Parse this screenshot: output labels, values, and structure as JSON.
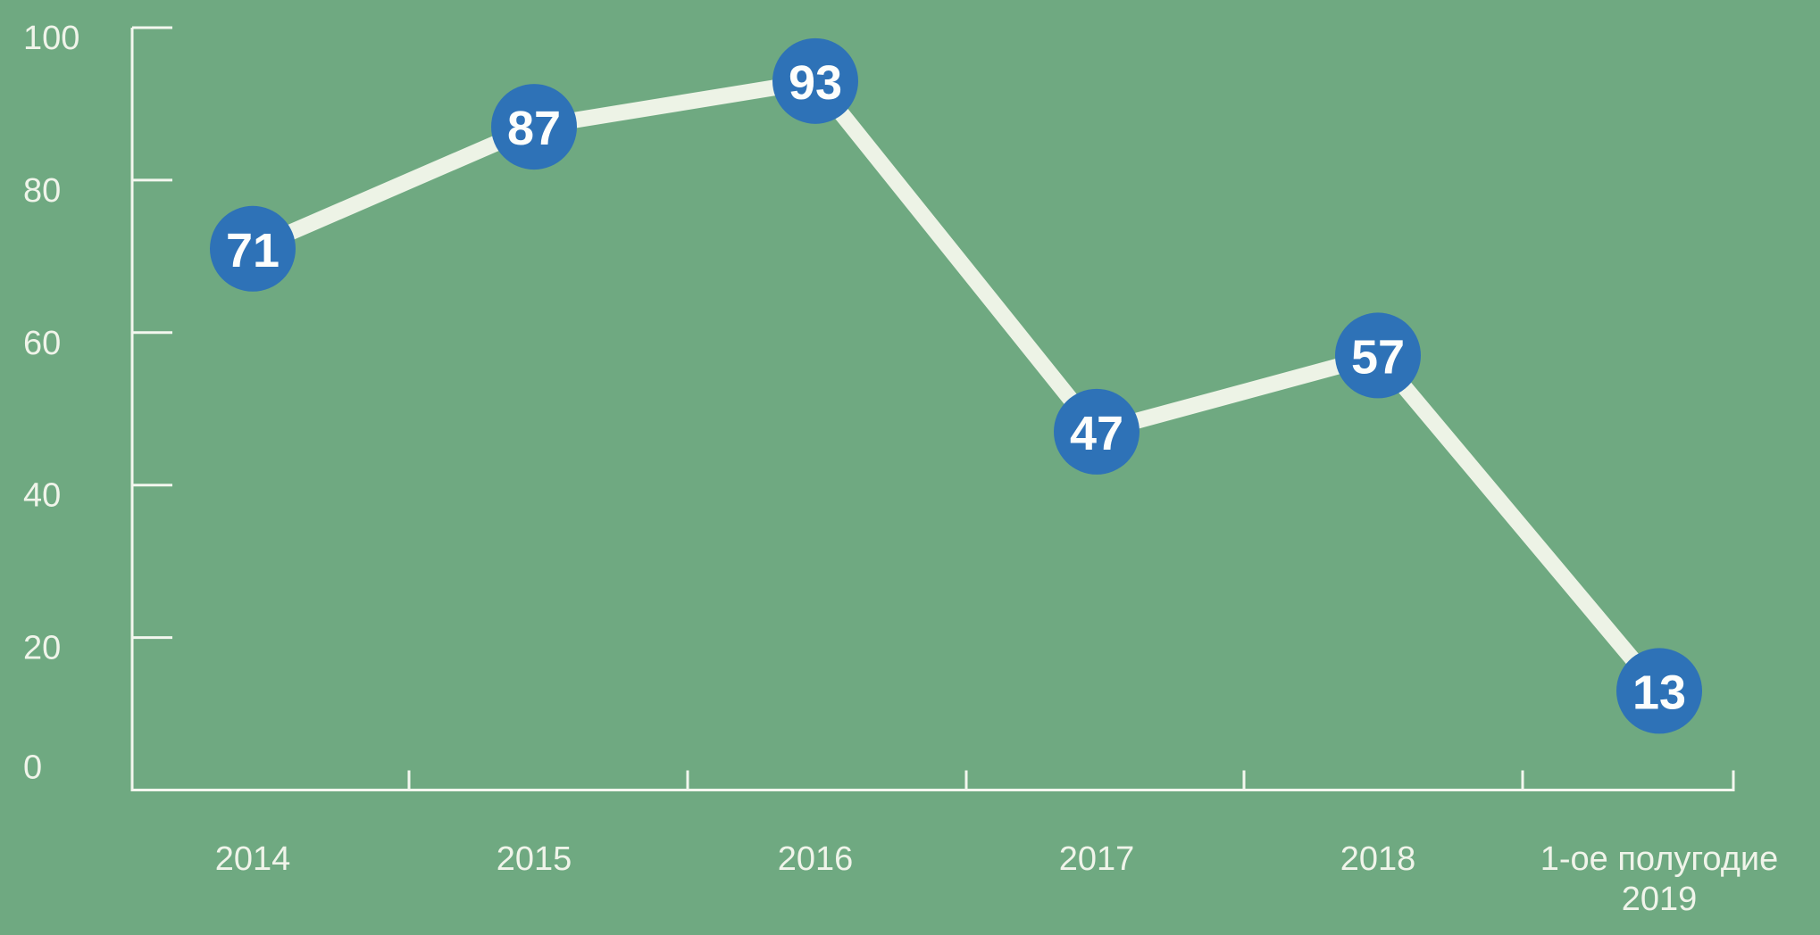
{
  "chart_data": {
    "type": "line",
    "title": "",
    "xlabel": "",
    "ylabel": "",
    "categories": [
      "2014",
      "2015",
      "2016",
      "2017",
      "2018",
      "1-ое полугодие\n2019"
    ],
    "series": [
      {
        "name": "value",
        "values": [
          71,
          87,
          93,
          47,
          57,
          13
        ]
      }
    ],
    "point_labels": [
      "71",
      "87",
      "93",
      "47",
      "57",
      "13"
    ],
    "y_ticks": [
      0,
      20,
      40,
      60,
      80,
      100
    ],
    "y_tick_labels": [
      "0",
      "20",
      "40",
      "60",
      "80",
      "100"
    ],
    "ylim": [
      0,
      100
    ],
    "grid": false,
    "legend": "none",
    "marker_shape": "circle",
    "colors": {
      "background": "#6FA981",
      "line": "#EDF3E6",
      "marker_fill": "#2E72B7",
      "marker_text": "#FDFEFC",
      "axis": "#F3F7EF",
      "tick_label_text": "#F0F4EA"
    }
  }
}
